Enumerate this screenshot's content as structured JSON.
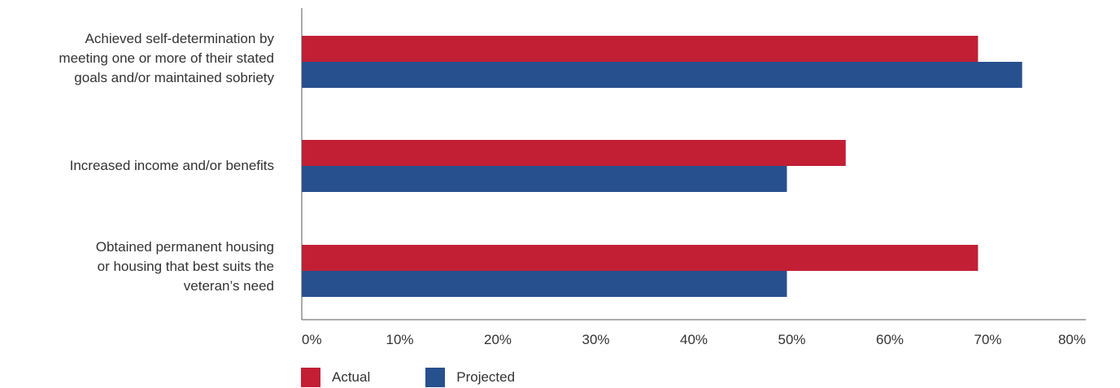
{
  "chart_data": {
    "type": "bar",
    "orientation": "horizontal",
    "categories": [
      "Achieved self-determination by\nmeeting one or more of their stated\ngoals and/or maintained sobriety",
      "Increased income and/or benefits",
      "Obtained permanent housing\nor housing that best suits the\nveteran’s need"
    ],
    "series": [
      {
        "name": "Actual",
        "color": "#c21f35",
        "values": [
          69,
          55.5,
          69
        ]
      },
      {
        "name": "Projected",
        "color": "#27508e",
        "values": [
          73.5,
          49.5,
          49.5
        ]
      }
    ],
    "xlim": [
      0,
      80
    ],
    "ticks": [
      "0%",
      "10%",
      "20%",
      "30%",
      "40%",
      "50%",
      "60%",
      "70%",
      "80%"
    ],
    "tick_values": [
      0,
      10,
      20,
      30,
      40,
      50,
      60,
      70,
      80
    ],
    "grid": false,
    "legend_position": "bottom-left"
  }
}
